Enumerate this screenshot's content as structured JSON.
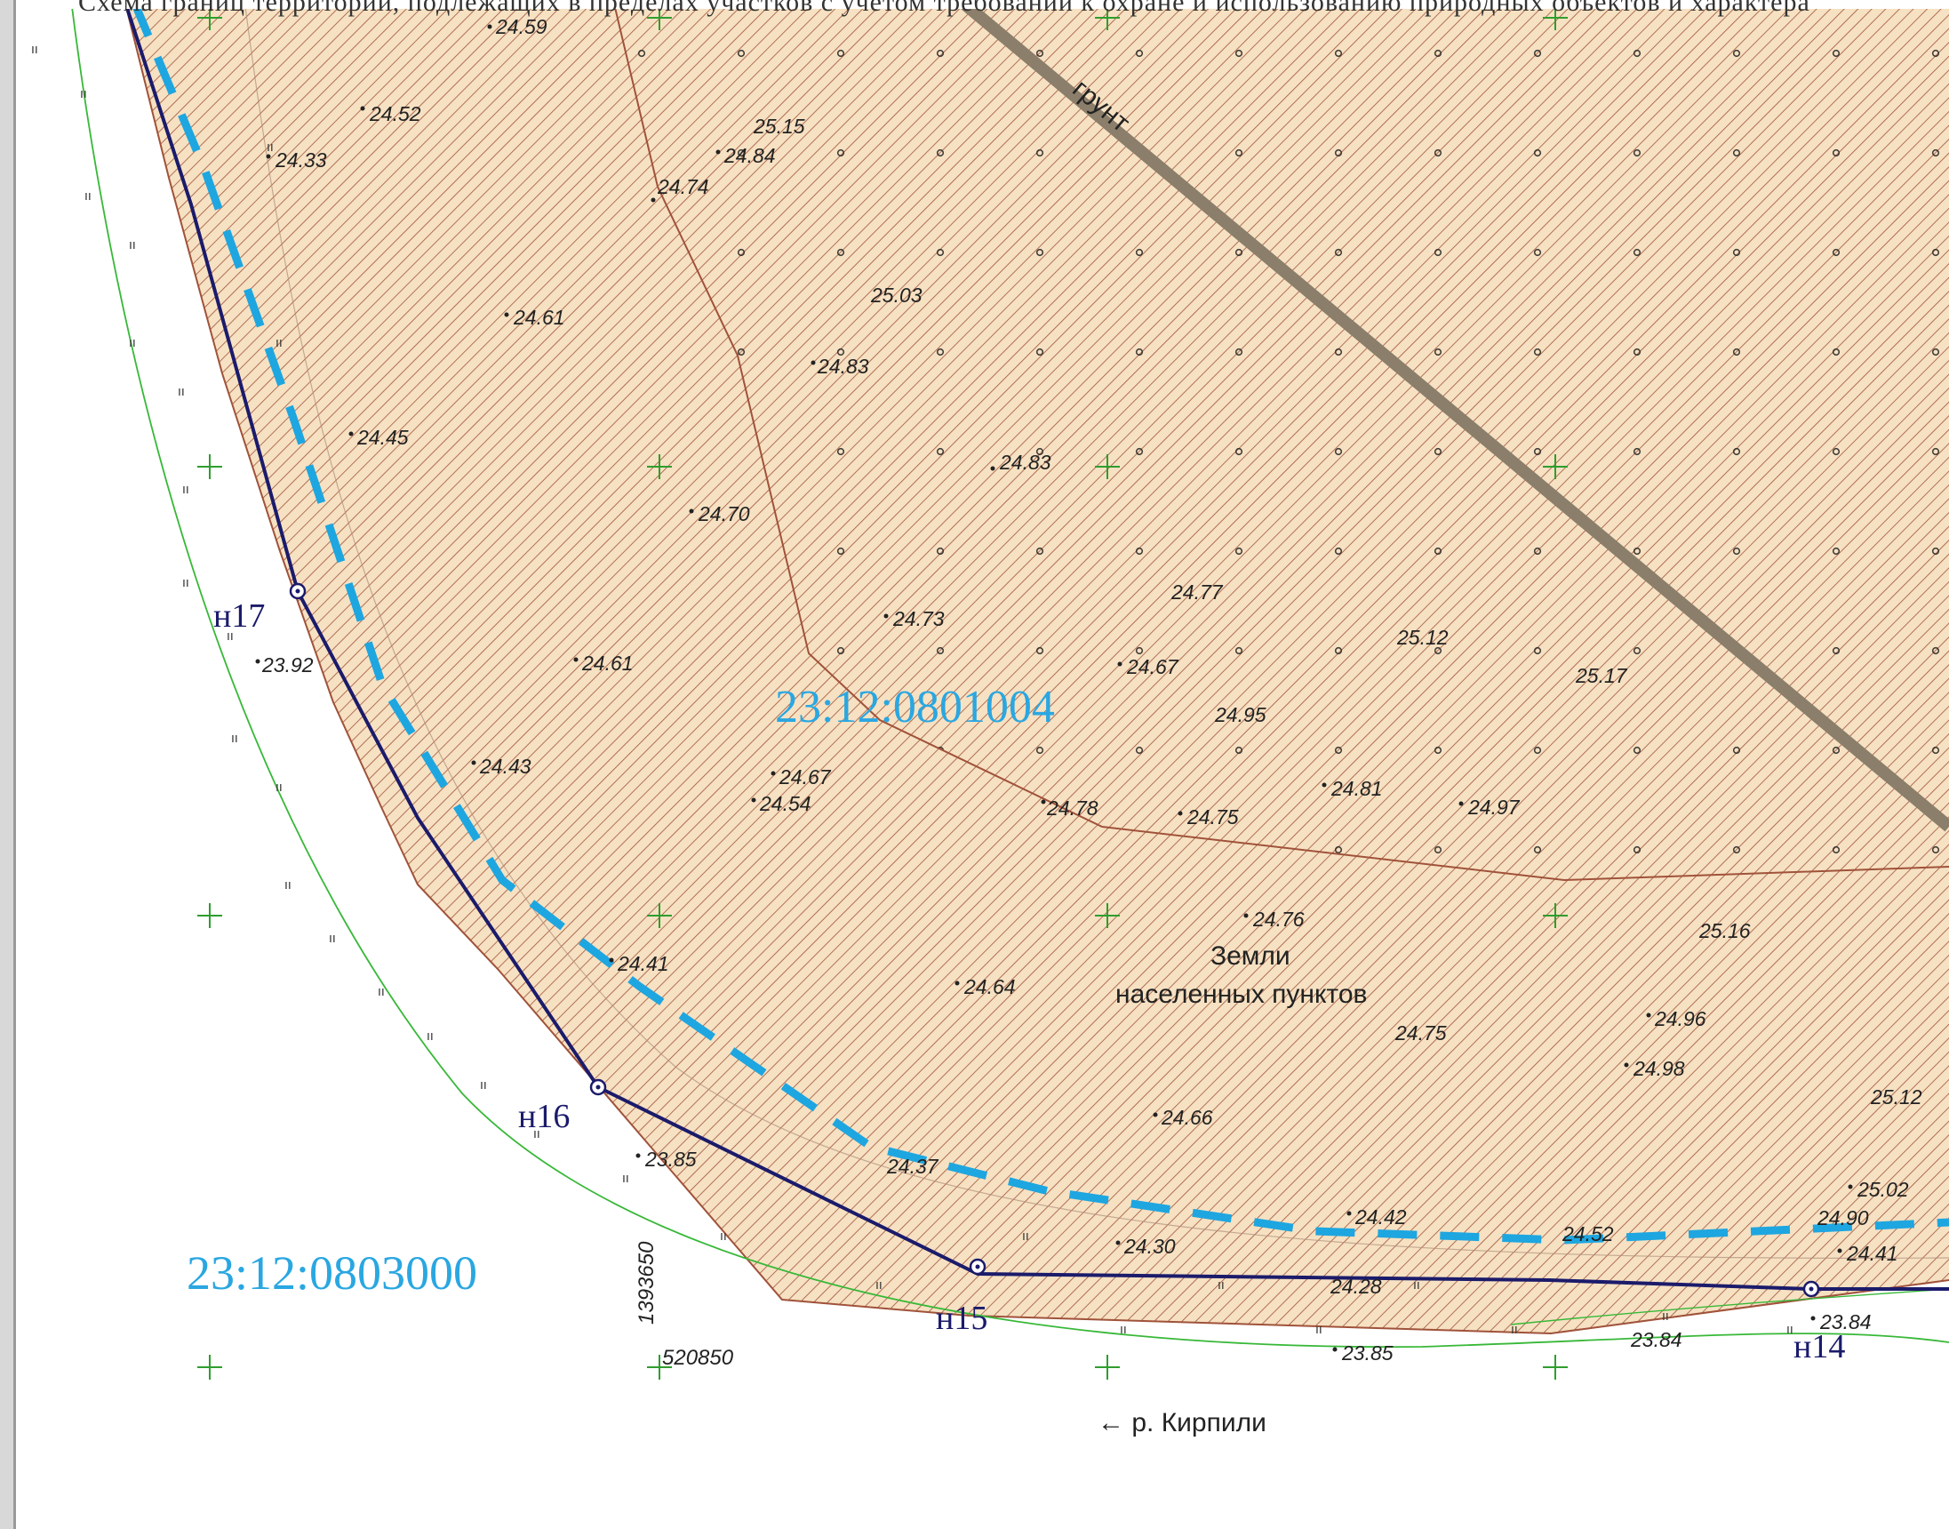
{
  "header_text": "Схема границ территории, подлежащих в пределах участков с учетом требований к охране и использованию природных объектов и характера",
  "parcels": {
    "main": "23:12:0801004",
    "outer": "23:12:0803000"
  },
  "zone_label": {
    "line1": "Земли",
    "line2": "населенных пунктов"
  },
  "road_label": "грунт",
  "river_label": "← р. Кирпили",
  "points": [
    {
      "label": "н17"
    },
    {
      "label": "н16"
    },
    {
      "label": "н15"
    },
    {
      "label": "н14"
    }
  ],
  "coordinates": {
    "vertical": "1393650",
    "horizontal": "520850"
  },
  "elevations": [
    "24.59",
    "24.52",
    "24.33",
    "25.15",
    "24.84",
    "24.74",
    "25.03",
    "24.61",
    "24.83",
    "24.45",
    "24.83",
    "24.70",
    "24.77",
    "25.12",
    "24.73",
    "25.17",
    "24.67",
    "24.95",
    "24.61",
    "23.92",
    "24.43",
    "24.67",
    "24.54",
    "24.81",
    "24.97",
    "24.78",
    "24.75",
    "24.76",
    "25.16",
    "24.41",
    "24.64",
    "24.75",
    "24.96",
    "24.98",
    "25.12",
    "24.66",
    "23.85",
    "24.37",
    "25.02",
    "24.90",
    "24.42",
    "24.30",
    "24.52",
    "24.41",
    "24.28",
    "23.84",
    "23.84",
    "23.85"
  ],
  "colors": {
    "parcel_fill": "#f6e1c2",
    "hatch": "#a0523a",
    "boundary": "#1b1b6b",
    "dashed_boundary": "#1ea6e0",
    "green_line": "#38b838",
    "road": "#8b7e6b",
    "parcel_label": "#2aa7e1"
  }
}
